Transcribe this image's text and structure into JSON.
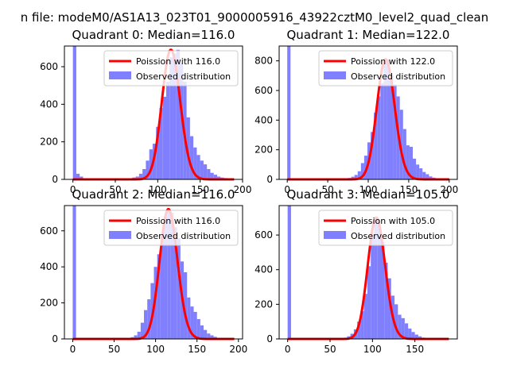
{
  "suptitle": "n file: modeM0/AS1A13_023T01_9000005916_43922cztM0_level2_quad_clean",
  "colors": {
    "poisson": "#ff0000",
    "observed": "#8080ff",
    "text": "#000000"
  },
  "chart_data": [
    {
      "type": "bar",
      "title": "Quadrant 0: Median=116.0",
      "median": 116.0,
      "xlim": [
        -10,
        200
      ],
      "ylim": [
        0,
        710
      ],
      "xticks": [
        0,
        50,
        100,
        150,
        200
      ],
      "yticks": [
        0,
        200,
        400,
        600
      ],
      "legend": [
        "Poission with 116.0",
        "Observed distribution"
      ],
      "legend_position": "top-right",
      "bins": {
        "x": [
          0,
          4,
          8,
          70,
          74,
          78,
          82,
          86,
          90,
          94,
          98,
          102,
          106,
          110,
          114,
          118,
          122,
          126,
          130,
          134,
          138,
          142,
          146,
          150,
          154,
          158,
          162,
          166,
          170,
          174,
          178,
          182,
          186
        ],
        "counts": [
          710,
          30,
          15,
          10,
          15,
          30,
          55,
          100,
          160,
          190,
          280,
          380,
          440,
          520,
          650,
          670,
          690,
          620,
          520,
          330,
          230,
          170,
          130,
          100,
          80,
          55,
          35,
          25,
          15,
          10,
          7,
          5,
          3
        ]
      }
    },
    {
      "type": "bar",
      "title": "Quadrant 1: Median=122.0",
      "median": 122.0,
      "xlim": [
        -10,
        210
      ],
      "ylim": [
        0,
        900
      ],
      "xticks": [
        0,
        50,
        100,
        150,
        200
      ],
      "yticks": [
        0,
        200,
        400,
        600,
        800
      ],
      "legend": [
        "Poission with 122.0",
        "Observed distribution"
      ],
      "legend_position": "top-right",
      "bins": {
        "x": [
          0,
          75,
          79,
          83,
          87,
          91,
          95,
          99,
          103,
          107,
          111,
          115,
          119,
          123,
          127,
          131,
          135,
          139,
          143,
          147,
          151,
          155,
          159,
          163,
          167,
          171,
          175,
          179,
          183
        ],
        "counts": [
          900,
          10,
          18,
          30,
          55,
          110,
          160,
          250,
          320,
          450,
          560,
          650,
          790,
          810,
          700,
          640,
          560,
          470,
          340,
          230,
          220,
          140,
          100,
          75,
          50,
          35,
          20,
          12,
          6
        ]
      }
    },
    {
      "type": "bar",
      "title": "Quadrant 2: Median=116.0",
      "median": 116.0,
      "xlim": [
        -10,
        205
      ],
      "ylim": [
        0,
        740
      ],
      "xticks": [
        0,
        50,
        100,
        150,
        200
      ],
      "yticks": [
        0,
        200,
        400,
        600
      ],
      "legend": [
        "Poission with 116.0",
        "Observed distribution"
      ],
      "legend_position": "top-right",
      "bins": {
        "x": [
          0,
          70,
          74,
          78,
          82,
          86,
          90,
          94,
          98,
          102,
          106,
          110,
          114,
          118,
          122,
          126,
          130,
          134,
          138,
          142,
          146,
          150,
          154,
          158,
          162,
          166,
          170,
          174,
          178
        ],
        "counts": [
          740,
          10,
          20,
          40,
          90,
          160,
          220,
          310,
          400,
          470,
          570,
          680,
          720,
          700,
          620,
          560,
          430,
          370,
          230,
          180,
          150,
          110,
          75,
          50,
          30,
          20,
          12,
          6,
          3
        ]
      }
    },
    {
      "type": "bar",
      "title": "Quadrant 3: Median=105.0",
      "median": 105.0,
      "xlim": [
        -10,
        200
      ],
      "ylim": [
        0,
        770
      ],
      "xticks": [
        0,
        50,
        100,
        150
      ],
      "yticks": [
        0,
        200,
        400,
        600
      ],
      "legend": [
        "Poission with 105.0",
        "Observed distribution"
      ],
      "legend_position": "top-right",
      "bins": {
        "x": [
          0,
          70,
          74,
          78,
          82,
          86,
          90,
          94,
          98,
          102,
          106,
          110,
          114,
          118,
          122,
          126,
          130,
          134,
          138,
          142,
          146,
          150,
          154,
          158
        ],
        "counts": [
          770,
          15,
          30,
          55,
          100,
          160,
          260,
          420,
          600,
          700,
          660,
          560,
          440,
          350,
          250,
          200,
          140,
          120,
          90,
          60,
          40,
          25,
          15,
          8
        ]
      }
    }
  ]
}
